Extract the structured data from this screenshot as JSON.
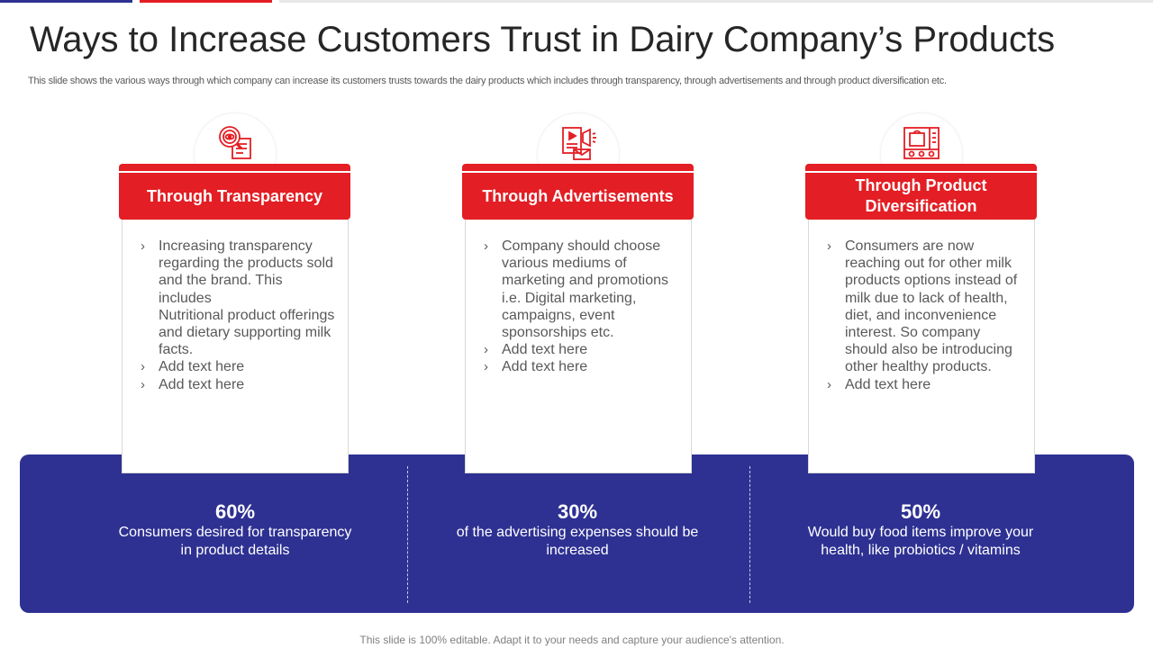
{
  "title": "Ways to Increase Customers Trust in Dairy Company’s Products",
  "subtitle": "This slide shows the various ways through which company can increase its customers trusts towards the dairy products which includes through transparency, through advertisements and through product diversification etc.",
  "colors": {
    "accent_red": "#e31e24",
    "panel_blue": "#2e3192"
  },
  "cards": [
    {
      "icon": "magnifier-document-icon",
      "heading": "Through Transparency",
      "bullets": [
        "Increasing transparency regarding the products sold and the brand. This includes\nNutritional product offerings and dietary supporting milk facts.",
        "Add text here",
        "Add text here"
      ]
    },
    {
      "icon": "advertising-megaphone-icon",
      "heading": "Through Advertisements",
      "bullets": [
        "Company should choose various mediums of marketing and promotions i.e. Digital marketing, campaigns, event sponsorships etc.",
        "Add text here",
        "Add text here"
      ]
    },
    {
      "icon": "product-shelf-icon",
      "heading": "Through Product Diversification",
      "bullets": [
        "Consumers are now reaching out for other milk products options instead of milk due to lack of health, diet, and inconvenience interest. So company should also be introducing other healthy products.",
        "Add text here"
      ]
    }
  ],
  "stats": [
    {
      "value": "60%",
      "text": "Consumers desired for transparency in product details"
    },
    {
      "value": "30%",
      "text": "of the advertising expenses should be increased"
    },
    {
      "value": "50%",
      "text": "Would buy food items improve your health, like probiotics / vitamins"
    }
  ],
  "footer": "This slide is 100% editable. Adapt it to your needs and capture your audience's attention."
}
